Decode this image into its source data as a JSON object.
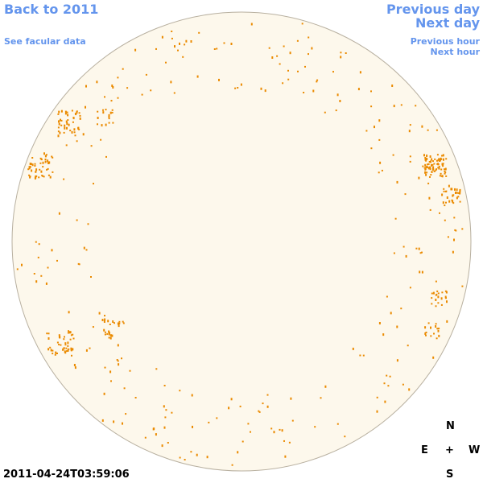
{
  "nav": {
    "back": "Back to 2011",
    "facular": "See facular data",
    "previous_day": "Previous day",
    "next_day": "Next day",
    "previous_hour": "Previous hour",
    "next_hour": "Next hour"
  },
  "timestamp": "2011-04-24T03:59:06",
  "compass": {
    "north": "N",
    "east": "E",
    "center": "+",
    "west": "W",
    "south": "S"
  }
}
